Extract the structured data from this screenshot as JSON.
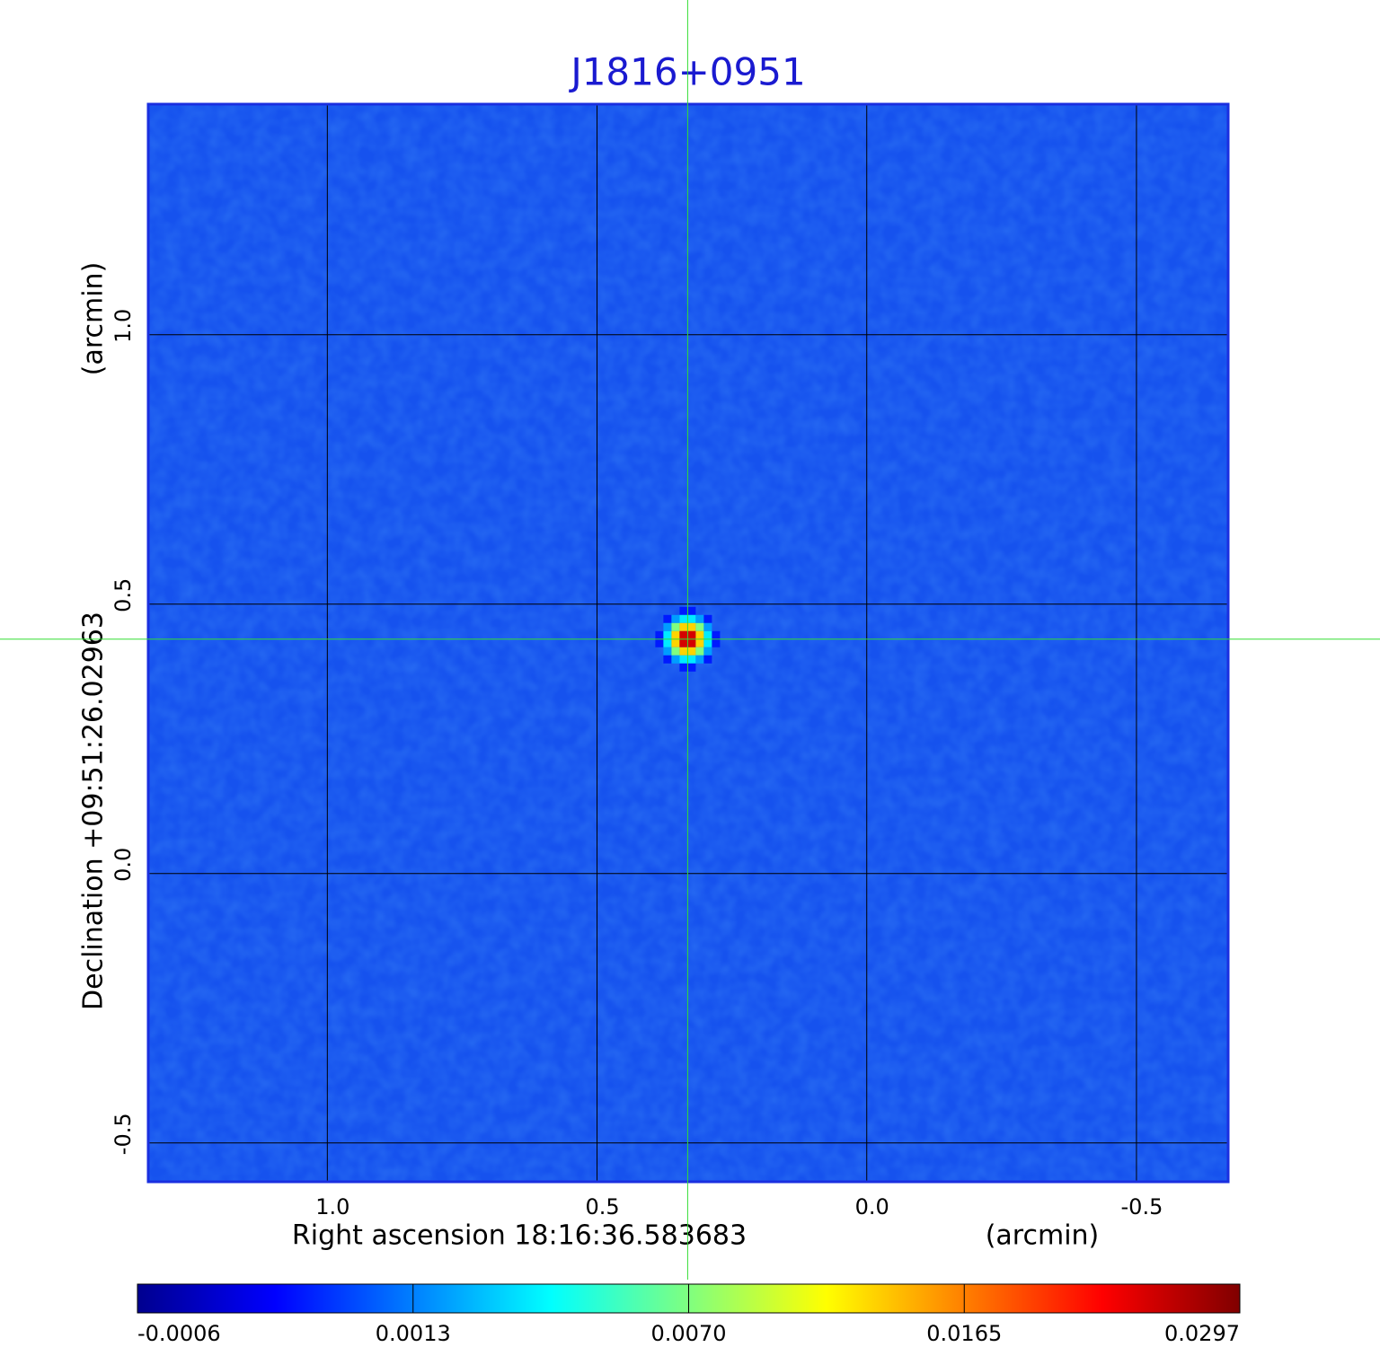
{
  "chart_data": {
    "type": "image",
    "title": "J1816+0951",
    "xlabel": "Right ascension  18:16:36.583683",
    "xunit": "(arcmin)",
    "ylabel": "Declination  +09:51:26.02963",
    "yunit": "(arcmin)",
    "xlim": [
      1.332,
      -0.67
    ],
    "ylim": [
      -0.572,
      1.428
    ],
    "xticks": [
      {
        "value": 1,
        "label": "1.0"
      },
      {
        "value": 0.5,
        "label": "0.5"
      },
      {
        "value": 0,
        "label": "0.0"
      },
      {
        "value": -0.5,
        "label": "-0.5"
      }
    ],
    "yticks": [
      {
        "value": -0.5,
        "label": "-0.5"
      },
      {
        "value": 0,
        "label": "0.0"
      },
      {
        "value": 0.5,
        "label": "0.5"
      },
      {
        "value": 1,
        "label": "1.0"
      }
    ],
    "grid": true,
    "source": {
      "x": 0.332,
      "y": 0.435,
      "peak": 0.0297
    },
    "colorbar_ticks": [
      {
        "value": -0.0006,
        "label": "-0.0006"
      },
      {
        "value": 0.0013,
        "label": "0.0013"
      },
      {
        "value": 0.007,
        "label": "0.0070"
      },
      {
        "value": 0.0165,
        "label": "0.0165"
      },
      {
        "value": 0.0297,
        "label": "0.0297"
      }
    ]
  }
}
